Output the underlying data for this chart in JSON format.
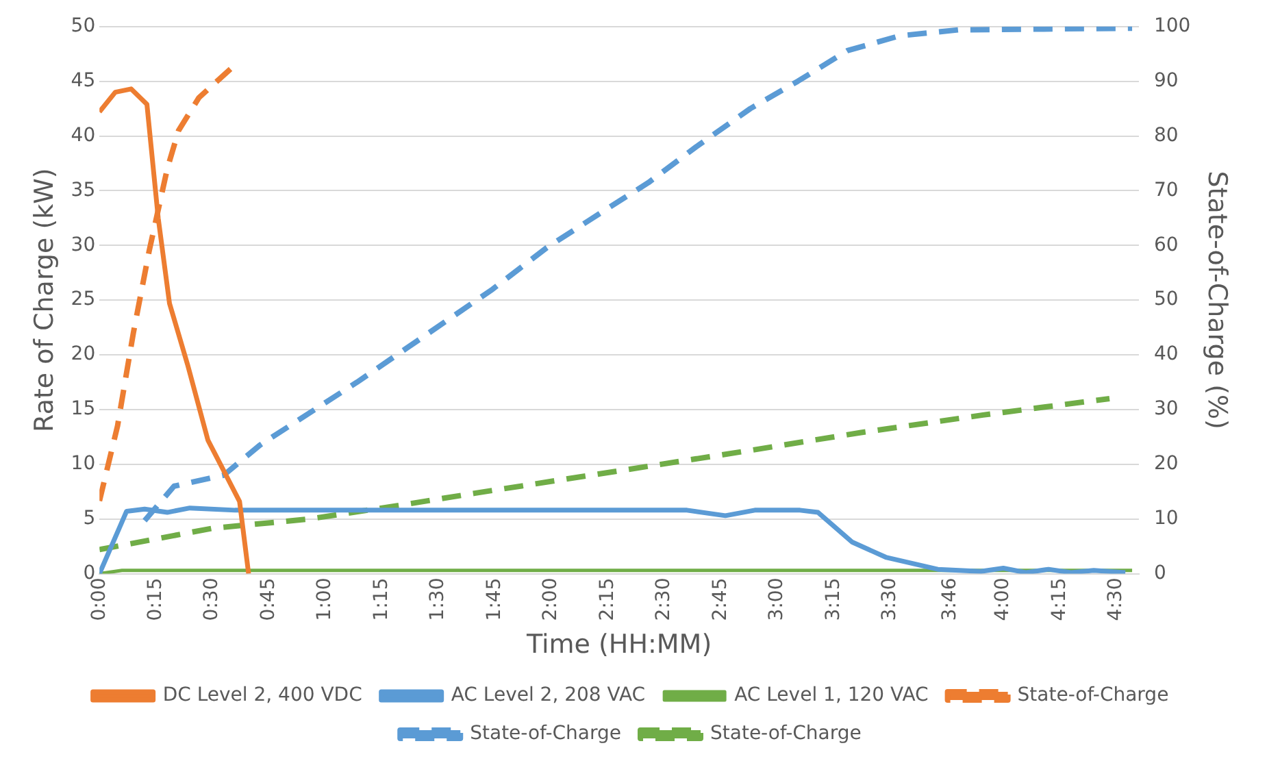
{
  "chart_data": {
    "type": "line",
    "xlabel": "Time (HH:MM)",
    "ylabel": "Rate of Charge (kW)",
    "y2label": "State-of-Charge (%)",
    "xlim": [
      0,
      4.6
    ],
    "xticks": [
      {
        "value": 0,
        "label": "0:00"
      },
      {
        "value": 0.25,
        "label": "0:15"
      },
      {
        "value": 0.5,
        "label": "0:30"
      },
      {
        "value": 0.75,
        "label": "0:45"
      },
      {
        "value": 1,
        "label": "1:00"
      },
      {
        "value": 1.25,
        "label": "1:15"
      },
      {
        "value": 1.5,
        "label": "1:30"
      },
      {
        "value": 1.75,
        "label": "1:45"
      },
      {
        "value": 2,
        "label": "2:00"
      },
      {
        "value": 2.25,
        "label": "2:15"
      },
      {
        "value": 2.5,
        "label": "2:30"
      },
      {
        "value": 2.75,
        "label": "2:45"
      },
      {
        "value": 3,
        "label": "3:00"
      },
      {
        "value": 3.25,
        "label": "3:15"
      },
      {
        "value": 3.5,
        "label": "3:30"
      },
      {
        "value": 3.7667,
        "label": "3:46"
      },
      {
        "value": 4,
        "label": "4:00"
      },
      {
        "value": 4.25,
        "label": "4:15"
      },
      {
        "value": 4.5,
        "label": "4:30"
      }
    ],
    "ylim": [
      0,
      50
    ],
    "yticks": [
      0,
      5,
      10,
      15,
      20,
      25,
      30,
      35,
      40,
      45,
      50
    ],
    "y2lim": [
      0,
      100
    ],
    "y2ticks": [
      0,
      10,
      20,
      30,
      40,
      50,
      60,
      70,
      80,
      90,
      100
    ],
    "grid": "y",
    "legend": "bottom",
    "series": [
      {
        "name": "DC Level 2, 400 VDC",
        "color": "#ed7d31",
        "line_style": "solid",
        "x": [
          0,
          0.07,
          0.14,
          0.21,
          0.26,
          0.31,
          0.39,
          0.48,
          0.54,
          0.62,
          0.66
        ],
        "values": [
          42.2,
          44.0,
          44.3,
          42.9,
          32.5,
          24.7,
          19.1,
          12.2,
          9.8,
          6.6,
          0
        ]
      },
      {
        "name": "AC Level 2, 208 VAC",
        "color": "#5b9bd5",
        "line_style": "solid",
        "x": [
          0,
          0.12,
          0.2,
          0.3,
          0.4,
          0.6,
          1,
          1.5,
          2,
          2.6,
          2.77,
          2.9,
          3.1,
          3.18,
          3.33,
          3.48,
          3.71,
          3.9,
          4.0,
          4.1,
          4.2,
          4.3,
          4.4,
          4.54
        ],
        "values": [
          0,
          5.7,
          5.9,
          5.6,
          6.0,
          5.8,
          5.8,
          5.8,
          5.8,
          5.8,
          5.3,
          5.8,
          5.8,
          5.6,
          2.9,
          1.5,
          0.4,
          0.2,
          0.5,
          0.1,
          0.4,
          0.1,
          0.3,
          0.1
        ]
      },
      {
        "name": "AC Level 1, 120 VAC",
        "color": "#70ad47",
        "line_style": "solid",
        "x": [
          0,
          0.1,
          4.57
        ],
        "values": [
          0,
          0.3,
          0.3
        ]
      },
      {
        "name": "State-of-Charge",
        "color": "#ed7d31",
        "line_style": "dashed",
        "axis": "y2",
        "x": [
          0,
          0.08,
          0.15,
          0.22,
          0.3,
          0.35,
          0.44,
          0.6
        ],
        "values": [
          13.3,
          27,
          44,
          59,
          74,
          81,
          87,
          93
        ]
      },
      {
        "name": "State-of-Charge",
        "color": "#5b9bd5",
        "line_style": "dashed",
        "axis": "y2",
        "x": [
          0.2,
          0.33,
          0.55,
          0.71,
          1.14,
          1.74,
          1.98,
          2.22,
          2.43,
          2.64,
          2.88,
          3.09,
          3.31,
          3.54,
          3.8,
          4.57
        ],
        "values": [
          9.7,
          16,
          18,
          23.5,
          35,
          52,
          59.6,
          66,
          71.5,
          78,
          85,
          90,
          95.6,
          98.3,
          99.4,
          99.7
        ]
      },
      {
        "name": "State-of-Charge",
        "color": "#70ad47",
        "line_style": "dashed",
        "axis": "y2",
        "x": [
          0,
          0.5,
          0.93,
          1.36,
          1.66,
          2.3,
          2.86,
          3.37,
          3.91,
          4.47
        ],
        "values": [
          4.4,
          8.3,
          10,
          12.7,
          14.7,
          18.8,
          22.4,
          25.8,
          29,
          32
        ]
      }
    ]
  }
}
